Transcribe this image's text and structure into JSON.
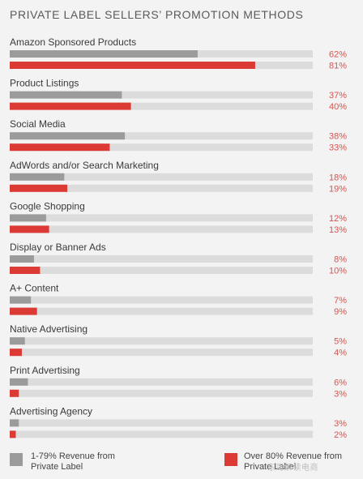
{
  "chart_data": {
    "type": "bar",
    "title": "PRIVATE LABEL SELLERS’ PROMOTION METHODS",
    "categories": [
      "Amazon Sponsored Products",
      "Product Listings",
      "Social Media",
      "AdWords and/or Search Marketing",
      "Google Shopping",
      "Display or Banner Ads",
      "A+ Content",
      "Native Advertising",
      "Print Advertising",
      "Advertising Agency"
    ],
    "series": [
      {
        "name": "1-79% Revenue from Private Label",
        "color": "#9b9b9b",
        "values": [
          62,
          37,
          38,
          18,
          12,
          8,
          7,
          5,
          6,
          3
        ]
      },
      {
        "name": "Over 80% Revenue from Private Label",
        "color": "#dc3a34",
        "values": [
          81,
          40,
          33,
          19,
          13,
          10,
          9,
          4,
          3,
          2
        ]
      }
    ],
    "value_suffix": "%",
    "xlim": [
      0,
      100
    ],
    "track_color": "#dcdcdc",
    "legend_position": "bottom",
    "grid": false
  },
  "legend": {
    "item1": "1-79% Revenue from Private Label",
    "item2": "Over 80% Revenue from Private Label"
  },
  "watermark": "东哥解读电商"
}
